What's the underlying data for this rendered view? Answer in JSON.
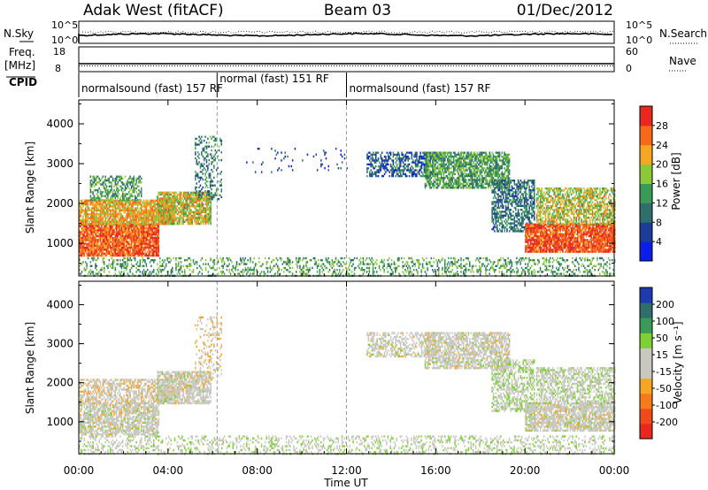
{
  "header": {
    "station": "Adak West (fitACF)",
    "beam": "Beam 03",
    "date": "01/Dec/2012"
  },
  "nsky_panel": {
    "label": "N.Sky",
    "right_label": "N.Search",
    "left_ticks": [
      "10^5",
      "10^0"
    ],
    "right_ticks": [
      "10^5",
      "10^0"
    ]
  },
  "freq_panel": {
    "label_line1": "Freq.",
    "label_line2": "[MHz]",
    "right_label": "Nave",
    "left_ticks": [
      "18",
      "8"
    ],
    "right_ticks": [
      "60",
      "0"
    ]
  },
  "cpid": {
    "label": "CPID",
    "segments": [
      {
        "start_hour": 0,
        "end_hour": 6.2,
        "text": "normalsound (fast) 157 RF"
      },
      {
        "start_hour": 6.2,
        "end_hour": 12.0,
        "text": "normal (fast) 151 RF"
      },
      {
        "start_hour": 12.0,
        "end_hour": 24,
        "text": "normalsound (fast) 157 RF"
      }
    ]
  },
  "chart_data": [
    {
      "type": "heatmap",
      "parameter": "power",
      "ylabel": "Slant Range [km]",
      "ylim": [
        180,
        4600
      ],
      "y_ticks": [
        1000,
        2000,
        3000,
        4000
      ],
      "xlim_hours": [
        0,
        24
      ],
      "colorbar": {
        "label": "Power [dB]",
        "tick_labels": [
          "4",
          "8",
          "12",
          "16",
          "20",
          "24",
          "28"
        ],
        "range": [
          0,
          32
        ],
        "colors": [
          "#0a1ee6",
          "#1c3c9a",
          "#2f6e6a",
          "#3a9a58",
          "#8cc83a",
          "#f6a623",
          "#f46a1a",
          "#e8281e"
        ]
      },
      "regions": [
        {
          "t_start": 0.0,
          "t_end": 3.6,
          "r_low": 700,
          "r_high": 1500,
          "value": 27,
          "density": 0.9
        },
        {
          "t_start": 0.0,
          "t_end": 4.3,
          "r_low": 1500,
          "r_high": 2100,
          "value": 22,
          "density": 0.85
        },
        {
          "t_start": 0.5,
          "t_end": 2.8,
          "r_low": 2100,
          "r_high": 2700,
          "value": 14,
          "density": 0.55
        },
        {
          "t_start": 3.5,
          "t_end": 5.9,
          "r_low": 1500,
          "r_high": 2300,
          "value": 20,
          "density": 0.8
        },
        {
          "t_start": 5.2,
          "t_end": 6.4,
          "r_low": 2100,
          "r_high": 3700,
          "value": 11,
          "density": 0.3
        },
        {
          "t_start": 12.9,
          "t_end": 16.0,
          "r_low": 2700,
          "r_high": 3300,
          "value": 8,
          "density": 0.55
        },
        {
          "t_start": 15.5,
          "t_end": 19.3,
          "r_low": 2400,
          "r_high": 3300,
          "value": 14,
          "density": 0.75
        },
        {
          "t_start": 18.5,
          "t_end": 20.4,
          "r_low": 1300,
          "r_high": 2600,
          "value": 10,
          "density": 0.6
        },
        {
          "t_start": 20.0,
          "t_end": 24.0,
          "r_low": 800,
          "r_high": 1500,
          "value": 28,
          "density": 0.9
        },
        {
          "t_start": 20.5,
          "t_end": 24.0,
          "r_low": 1500,
          "r_high": 2400,
          "value": 19,
          "density": 0.65
        },
        {
          "t_start": 0.0,
          "t_end": 24.0,
          "r_low": 180,
          "r_high": 650,
          "value": 14,
          "density": 0.3
        },
        {
          "t_start": 7.5,
          "t_end": 12.0,
          "r_low": 2800,
          "r_high": 3400,
          "value": 6,
          "density": 0.05
        }
      ]
    },
    {
      "type": "heatmap",
      "parameter": "velocity",
      "ylabel": "Slant Range [km]",
      "ylim": [
        180,
        4600
      ],
      "y_ticks": [
        1000,
        2000,
        3000,
        4000
      ],
      "xlabel": "Time UT",
      "xlim_hours": [
        0,
        24
      ],
      "x_tick_labels": [
        "00:00",
        "04:00",
        "08:00",
        "12:00",
        "16:00",
        "20:00",
        "00:00"
      ],
      "colorbar": {
        "label": "Velocity [m s⁻¹]",
        "tick_labels": [
          "200",
          "100",
          "50",
          "15",
          "-15",
          "-50",
          "-100",
          "-200"
        ],
        "range": [
          -250,
          250
        ],
        "colors": [
          "#e8281e",
          "#f04a1c",
          "#f47a1c",
          "#f6a623",
          "#c8c8c0",
          "#c8c8c0",
          "#7ed036",
          "#3a9a58",
          "#2f6e6a",
          "#1c3cae"
        ]
      },
      "regions": [
        {
          "t_start": 0.0,
          "t_end": 3.6,
          "r_low": 700,
          "r_high": 1500,
          "value": 0,
          "density": 0.75
        },
        {
          "t_start": 0.0,
          "t_end": 4.3,
          "r_low": 1500,
          "r_high": 2100,
          "value": -20,
          "density": 0.6
        },
        {
          "t_start": 3.5,
          "t_end": 5.9,
          "r_low": 1500,
          "r_high": 2300,
          "value": 0,
          "density": 0.75
        },
        {
          "t_start": 5.2,
          "t_end": 6.4,
          "r_low": 2100,
          "r_high": 3700,
          "value": -40,
          "density": 0.25
        },
        {
          "t_start": 12.9,
          "t_end": 16.0,
          "r_low": 2700,
          "r_high": 3300,
          "value": 0,
          "density": 0.5
        },
        {
          "t_start": 15.5,
          "t_end": 19.3,
          "r_low": 2400,
          "r_high": 3300,
          "value": 0,
          "density": 0.7
        },
        {
          "t_start": 18.5,
          "t_end": 20.4,
          "r_low": 1300,
          "r_high": 2600,
          "value": 30,
          "density": 0.55
        },
        {
          "t_start": 20.0,
          "t_end": 24.0,
          "r_low": 800,
          "r_high": 1500,
          "value": 0,
          "density": 0.8
        },
        {
          "t_start": 20.5,
          "t_end": 24.0,
          "r_low": 1500,
          "r_high": 2400,
          "value": 20,
          "density": 0.55
        },
        {
          "t_start": 0.0,
          "t_end": 24.0,
          "r_low": 180,
          "r_high": 650,
          "value": 25,
          "density": 0.3
        }
      ]
    }
  ]
}
